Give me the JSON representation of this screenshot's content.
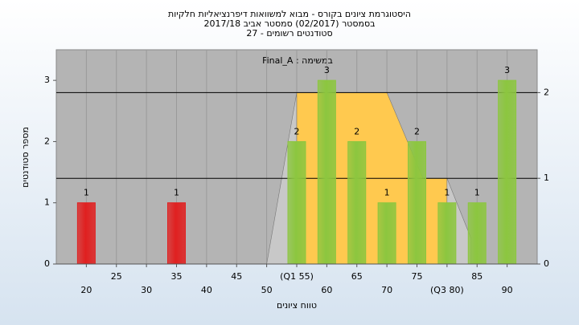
{
  "chart_data": {
    "type": "bar",
    "title": "היסטוגרמת ציונים בקורס - מבוא למשוואות דיפרנציאליות חלקיות",
    "subtitle": [
      "בסמסטר  (02/2017)  סמסטר אביב 2017/18",
      "סטודנטים רשומים - 27"
    ],
    "annotation": "Final_A : במשימה",
    "y_label": "מספר סטודנטים",
    "x_label": "טווח ציונים",
    "x": [
      20,
      35,
      55,
      60,
      65,
      70,
      75,
      80,
      85,
      90
    ],
    "values": [
      1,
      1,
      2,
      3,
      2,
      1,
      2,
      1,
      1,
      3
    ],
    "colors": [
      "#e02020",
      "#e02020",
      "#8cc63f",
      "#8cc63f",
      "#8cc63f",
      "#8cc63f",
      "#8cc63f",
      "#8cc63f",
      "#8cc63f",
      "#8cc63f"
    ],
    "xlim": [
      15,
      95
    ],
    "xticks": [
      20,
      25,
      30,
      35,
      40,
      45,
      50,
      {
        "value": 55,
        "label": "(Q1 55)"
      },
      60,
      65,
      70,
      75,
      {
        "value": 80,
        "label": "(Q3 80)"
      },
      85,
      90
    ],
    "ylim": [
      0,
      3.5
    ],
    "yticks": [
      0,
      1,
      2,
      3
    ],
    "y2lim": [
      0,
      2.5
    ],
    "y2ticks": [
      0,
      1,
      2
    ],
    "areas": [
      {
        "color": "#c8c8c8",
        "x": [
          50,
          55
        ],
        "y": [
          0,
          2
        ]
      },
      {
        "color": "#ffc94f",
        "x": [
          55,
          70,
          76,
          80,
          80
        ],
        "y": [
          2,
          2,
          1,
          1,
          0
        ]
      },
      {
        "color": "#c8c8c8",
        "x": [
          80,
          84
        ],
        "y": [
          1,
          0.3
        ]
      }
    ]
  }
}
